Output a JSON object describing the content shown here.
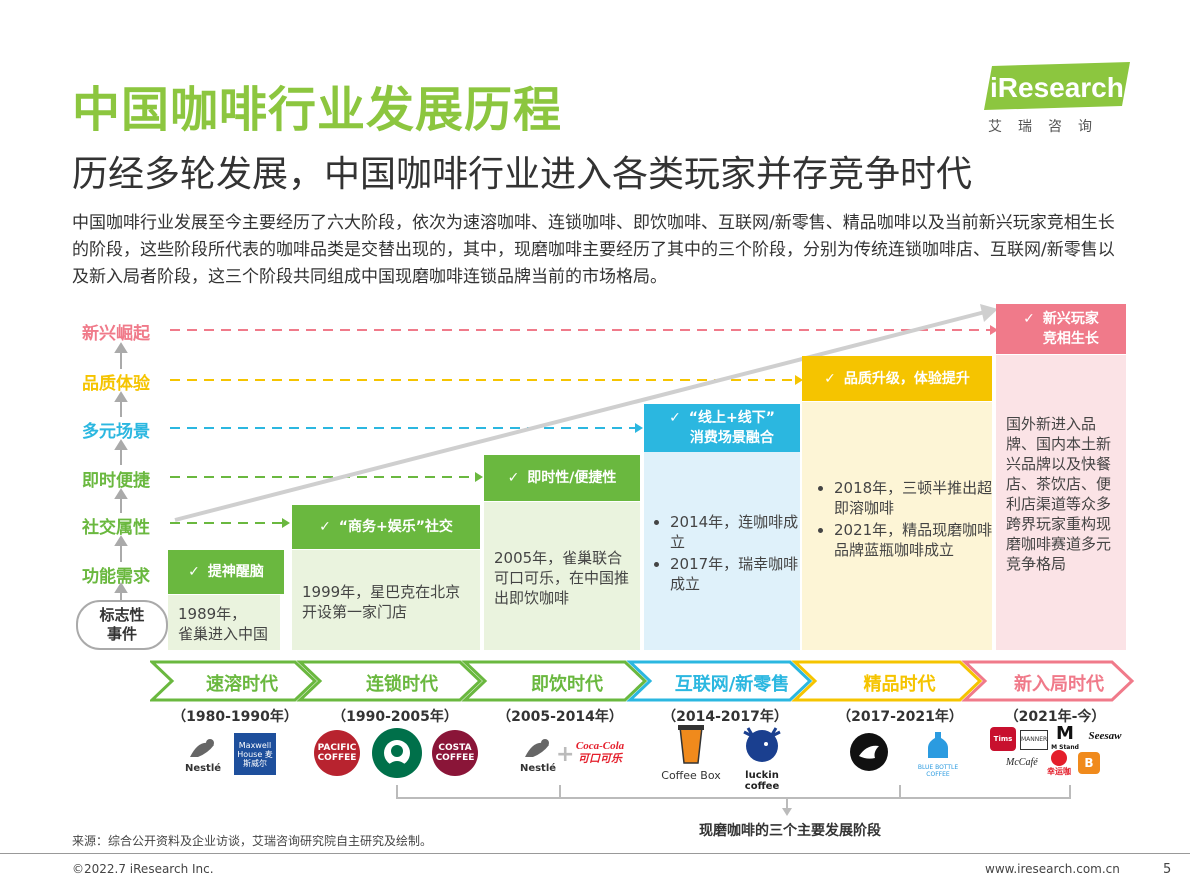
{
  "title": "中国咖啡行业发展历程",
  "subtitle": "历经多轮发展，中国咖啡行业进入各类玩家并存竞争时代",
  "intro": "中国咖啡行业发展至今主要经历了六大阶段，依次为速溶咖啡、连锁咖啡、即饮咖啡、互联网/新零售、精品咖啡以及当前新兴玩家竞相生长的阶段，这些阶段所代表的咖啡品类是交替出现的，其中，现磨咖啡主要经历了其中的三个阶段，分别为传统连锁咖啡店、互联网/新零售以及新入局者阶段，这三个阶段共同组成中国现磨咖啡连锁品牌当前的市场格局。",
  "logo": {
    "name": "iResearch",
    "sub": "艾瑞咨询"
  },
  "levels": [
    {
      "label": "新兴崛起",
      "color": "#f07a8a"
    },
    {
      "label": "品质体验",
      "color": "#f5c400"
    },
    {
      "label": "多元场景",
      "color": "#2bb7e0"
    },
    {
      "label": "即时便捷",
      "color": "#6ab83f"
    },
    {
      "label": "社交属性",
      "color": "#6ab83f"
    },
    {
      "label": "功能需求",
      "color": "#6ab83f"
    }
  ],
  "event_label": "标志性\n事件",
  "check": "✓",
  "columns": [
    {
      "header": "提神醒脑",
      "body": "1989年，\n雀巢进入中国",
      "color": "#6ab83f",
      "bg": "#eaf3de"
    },
    {
      "header": "“商务+娱乐”社交",
      "body": "1999年，星巴克在北京开设第一家门店",
      "color": "#6ab83f",
      "bg": "#eaf3de"
    },
    {
      "header": "即时性/便捷性",
      "body": "2005年，雀巢联合可口可乐，在中国推出即饮咖啡",
      "color": "#6ab83f",
      "bg": "#eaf3de"
    },
    {
      "header": "“线上+线下”\n消费场景融合",
      "bullets": [
        "2014年，连咖啡成立",
        "2017年，瑞幸咖啡成立"
      ],
      "color": "#2bb7e0",
      "bg": "#dff1fa"
    },
    {
      "header": "品质升级，体验提升",
      "bullets": [
        "2018年，三顿半推出超即溶咖啡",
        "2021年，精品现磨咖啡品牌蓝瓶咖啡成立"
      ],
      "color": "#f5c400",
      "bg": "#fdf5d6"
    },
    {
      "header": "新兴玩家\n竞相生长",
      "body": "国外新进入品牌、国内本土新兴品牌以及快餐店、茶饮店、便利店渠道等众多跨界玩家重构现磨咖啡赛道多元竞争格局",
      "color": "#f07a8a",
      "bg": "#fbe3e6"
    }
  ],
  "eras": [
    {
      "label": "速溶时代",
      "years": "（1980-1990年）",
      "color": "#6ab83f"
    },
    {
      "label": "连锁时代",
      "years": "（1990-2005年）",
      "color": "#6ab83f"
    },
    {
      "label": "即饮时代",
      "years": "（2005-2014年）",
      "color": "#6ab83f"
    },
    {
      "label": "互联网/新零售",
      "years": "（2014-2017年）",
      "color": "#2bb7e0"
    },
    {
      "label": "精品时代",
      "years": "（2017-2021年）",
      "color": "#f5c400"
    },
    {
      "label": "新入局时代",
      "years": "（2021年-今）",
      "color": "#f07a8a"
    }
  ],
  "brands": {
    "nestle": "Nestlé",
    "maxwell": "Maxwell House 麦斯威尔",
    "pacific": "PACIFIC COFFEE",
    "costa": "COSTA COFFEE",
    "cocacola": "Coca-Cola 可口可乐",
    "coffeebox": "Coffee Box",
    "luckin": "luckin coffee",
    "bluebottle": "BLUE BOTTLE COFFEE",
    "tims": "Tims",
    "manner": "MANNER",
    "mstand": "M Stand",
    "seesaw": "Seesaw",
    "mccafe": "McCafé",
    "xingyuncha": "幸运咖"
  },
  "bracket_label": "现磨咖啡的三个主要发展阶段",
  "source": "来源：综合公开资料及企业访谈，艾瑞咨询研究院自主研究及绘制。",
  "copyright": "©2022.7 iResearch Inc.",
  "website": "www.iresearch.com.cn",
  "page": "5"
}
